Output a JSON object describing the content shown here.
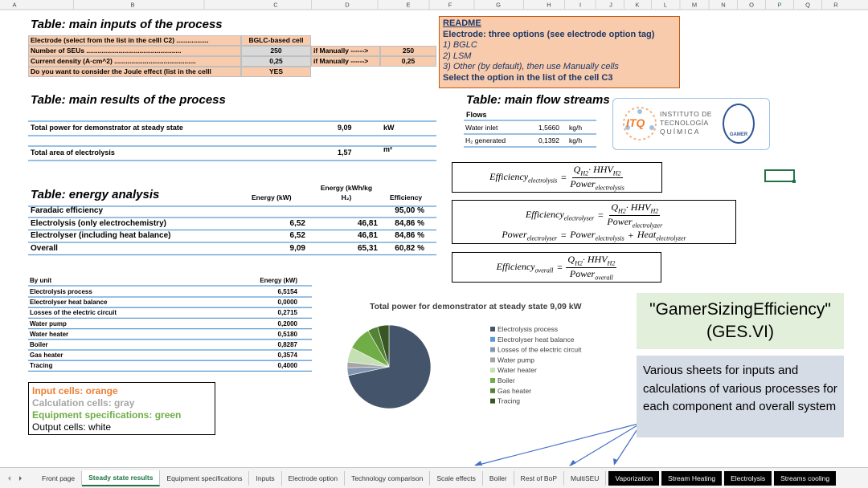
{
  "columns": [
    "A",
    "B",
    "C",
    "D",
    "E",
    "F",
    "G",
    "H",
    "I",
    "J",
    "K",
    "L",
    "M",
    "N",
    "O",
    "P",
    "Q",
    "R"
  ],
  "inputs": {
    "title": "Table: main inputs of the process",
    "rows": [
      [
        "Electrode (select from the list in the celll C2) .................",
        "BGLC-based cell"
      ],
      [
        "Number of SEUs ..................................................",
        "250",
        "if Manually ------>",
        "250"
      ],
      [
        "Current density (A·cm^2) ...........................................",
        "0,25",
        "if Manually ------>",
        "0,25"
      ],
      [
        "Do you want to consider the Joule effect (list in the celll",
        "YES"
      ]
    ]
  },
  "results": {
    "title": "Table: main results of the process",
    "rows": [
      [
        "Total power for demonstrator at steady state",
        "9,09",
        "kW"
      ],
      [
        "Total area of electrolysis",
        "1,57",
        "m²"
      ]
    ]
  },
  "energy": {
    "title": "Table: energy analysis",
    "headers": [
      "Energy (kW)",
      "Energy (kWh/kg H₂)",
      "Efficiency"
    ],
    "rows": [
      {
        "label": "Faradaic efficiency",
        "efficiency": "95,00 %"
      },
      {
        "label": "Electrolysis (only electrochemistry)",
        "kw": "6,52",
        "kwh": "46,81",
        "efficiency": "84,86 %"
      },
      {
        "label": "Electrolyser (including heat balance)",
        "kw": "6,52",
        "kwh": "46,81",
        "efficiency": "84,86 %"
      },
      {
        "label": "Overall",
        "kw": "9,09",
        "kwh": "65,31",
        "efficiency": "60,82 %"
      }
    ]
  },
  "by_unit": {
    "headers": [
      "By unit",
      "Energy (kW)"
    ],
    "rows": [
      [
        "Electrolysis process",
        "6,5154"
      ],
      [
        "Electrolyser heat balance",
        "0,0000"
      ],
      [
        "Losses of the electric circuit",
        "0,2715"
      ],
      [
        "Water pump",
        "0,2000"
      ],
      [
        "Water heater",
        "0,5180"
      ],
      [
        "Boiler",
        "0,8287"
      ],
      [
        "Gas heater",
        "0,3574"
      ],
      [
        "Tracing",
        "0,4000"
      ]
    ]
  },
  "key": {
    "lines": [
      "Input cells: orange",
      "Calculation cells: gray",
      "Equipment specifications: green",
      "Output cells: white"
    ]
  },
  "readme": {
    "title": "README",
    "lines": [
      "Electrode: three options (see electrode option tag)",
      "1) BGLC",
      "2) LSM",
      "3) Other (by default), then use Manually cells",
      "Select the option in the list of the cell C3"
    ]
  },
  "flows": {
    "title": "Table: main flow streams",
    "header": "Flows",
    "rows": [
      [
        "Water inlet",
        "1,5660",
        "kg/h"
      ],
      [
        "H₂ generated",
        "0,1392",
        "kg/h"
      ]
    ]
  },
  "logo": {
    "mark": "ITQ",
    "lines": [
      "INSTITUTO DE",
      "TECNOLOGÍA",
      "QUÍMICA"
    ],
    "badge": "GAMER"
  },
  "equations": [
    {
      "lines": [
        [
          {
            "t": "Efficiency",
            "sub": "electrolysis"
          },
          {
            "t": "="
          },
          {
            "num": [
              {
                "t": "Q",
                "sub": "H2"
              },
              {
                "t": "· HHV",
                "sub": "H2"
              }
            ],
            "den": [
              {
                "t": "Power",
                "sub": "electrolysis"
              }
            ]
          }
        ]
      ]
    },
    {
      "lines": [
        [
          {
            "t": "Efficiency",
            "sub": "electrolyser"
          },
          {
            "t": "="
          },
          {
            "num": [
              {
                "t": "Q",
                "sub": "H2"
              },
              {
                "t": "· HHV",
                "sub": "H2"
              }
            ],
            "den": [
              {
                "t": "Power",
                "sub": "electrolyzer"
              }
            ]
          }
        ],
        [
          {
            "t": "Power",
            "sub": "electrolyser"
          },
          {
            "t": "="
          },
          {
            "t": "Power",
            "sub": "electrolysis"
          },
          {
            "t": "+"
          },
          {
            "t": "Heat",
            "sub": "electrolyzer"
          }
        ]
      ]
    },
    {
      "lines": [
        [
          {
            "t": "Efficiency",
            "sub": "overall"
          },
          {
            "t": "="
          },
          {
            "num": [
              {
                "t": "Q",
                "sub": "H2"
              },
              {
                "t": "· HHV",
                "sub": "H2"
              }
            ],
            "den": [
              {
                "t": "Power",
                "sub": "overall"
              }
            ]
          }
        ]
      ]
    }
  ],
  "chart_data": {
    "type": "pie",
    "title": "Total power for demonstrator at steady state 9,09 kW",
    "categories": [
      "Electrolysis process",
      "Electrolyser heat balance",
      "Losses of the electric circuit",
      "Water pump",
      "Water heater",
      "Boiler",
      "Gas heater",
      "Tracing"
    ],
    "values": [
      6.5154,
      0,
      0.2715,
      0.2,
      0.518,
      0.8287,
      0.3574,
      0.4
    ],
    "colors": [
      "#44546a",
      "#5b9bd5",
      "#8497b0",
      "#a5a5a5",
      "#c5e0b4",
      "#70ad47",
      "#548235",
      "#375623"
    ]
  },
  "ges": {
    "lines": [
      "\"GamerSizingEfficiency\"",
      "(GES.VI)"
    ]
  },
  "note": {
    "text": "Various sheets for inputs and calculations of various processes for each component and overall system"
  },
  "tabs": [
    {
      "label": "Front page"
    },
    {
      "label": "Steady state results",
      "active": true
    },
    {
      "label": "Equipment specifications"
    },
    {
      "label": "Inputs"
    },
    {
      "label": "Electrode option"
    },
    {
      "label": "Technology comparison"
    },
    {
      "label": "Scale effects"
    },
    {
      "label": "Boiler"
    },
    {
      "label": "Rest of BoP"
    },
    {
      "label": "MultiSEU"
    },
    {
      "label": "Vaporization",
      "dark": true
    },
    {
      "label": "Stream Heating",
      "dark": true
    },
    {
      "label": "Electrolysis",
      "dark": true
    },
    {
      "label": "Streams cooling",
      "dark": true
    }
  ]
}
